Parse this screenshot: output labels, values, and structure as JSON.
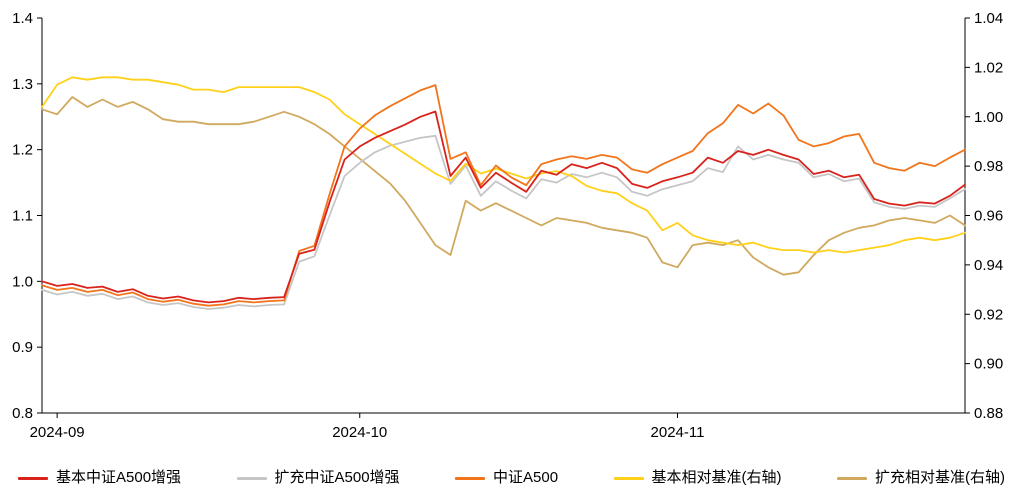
{
  "chart_data": {
    "type": "line",
    "title": "",
    "background": "#ffffff",
    "grid": false,
    "legend_position": "bottom",
    "x_tick_labels": [
      "2024-09",
      "2024-10",
      "2024-11"
    ],
    "x_tick_indices": [
      1,
      21,
      42
    ],
    "n_points": 62,
    "left_axis": {
      "min": 0.8,
      "max": 1.4,
      "tick_step": 0.1,
      "decimals": 1
    },
    "right_axis": {
      "min": 0.88,
      "max": 1.04,
      "tick_step": 0.02,
      "decimals": 2
    },
    "axis_color": "#000000",
    "series": [
      {
        "name": "基本中证A500增强",
        "axis": "left",
        "color": "#d9221c",
        "values": [
          1.0,
          0.993,
          0.996,
          0.99,
          0.992,
          0.984,
          0.988,
          0.978,
          0.974,
          0.977,
          0.971,
          0.968,
          0.97,
          0.975,
          0.973,
          0.975,
          0.976,
          1.042,
          1.048,
          1.12,
          1.185,
          1.205,
          1.218,
          1.228,
          1.238,
          1.25,
          1.258,
          1.16,
          1.188,
          1.142,
          1.165,
          1.15,
          1.136,
          1.168,
          1.162,
          1.178,
          1.172,
          1.18,
          1.172,
          1.148,
          1.142,
          1.152,
          1.158,
          1.165,
          1.188,
          1.18,
          1.198,
          1.192,
          1.2,
          1.192,
          1.185,
          1.163,
          1.168,
          1.158,
          1.162,
          1.125,
          1.118,
          1.115,
          1.12,
          1.118,
          1.13,
          1.147
        ]
      },
      {
        "name": "扩充中证A500增强",
        "axis": "left",
        "color": "#c6c6c6",
        "values": [
          0.987,
          0.98,
          0.984,
          0.978,
          0.981,
          0.973,
          0.977,
          0.968,
          0.964,
          0.967,
          0.961,
          0.958,
          0.96,
          0.964,
          0.962,
          0.964,
          0.965,
          1.03,
          1.038,
          1.1,
          1.16,
          1.18,
          1.196,
          1.206,
          1.212,
          1.218,
          1.221,
          1.148,
          1.176,
          1.13,
          1.152,
          1.138,
          1.126,
          1.155,
          1.15,
          1.163,
          1.158,
          1.165,
          1.158,
          1.136,
          1.13,
          1.14,
          1.146,
          1.152,
          1.172,
          1.166,
          1.205,
          1.185,
          1.192,
          1.185,
          1.18,
          1.158,
          1.163,
          1.152,
          1.156,
          1.12,
          1.113,
          1.11,
          1.115,
          1.113,
          1.126,
          1.14
        ]
      },
      {
        "name": "中证A500",
        "axis": "left",
        "color": "#f2741b",
        "values": [
          0.994,
          0.987,
          0.99,
          0.984,
          0.987,
          0.979,
          0.983,
          0.973,
          0.969,
          0.972,
          0.966,
          0.963,
          0.965,
          0.97,
          0.968,
          0.97,
          0.971,
          1.046,
          1.054,
          1.132,
          1.205,
          1.232,
          1.252,
          1.266,
          1.278,
          1.29,
          1.298,
          1.186,
          1.196,
          1.146,
          1.176,
          1.158,
          1.146,
          1.178,
          1.185,
          1.19,
          1.186,
          1.192,
          1.188,
          1.17,
          1.165,
          1.178,
          1.188,
          1.198,
          1.225,
          1.24,
          1.268,
          1.255,
          1.27,
          1.252,
          1.215,
          1.205,
          1.21,
          1.22,
          1.224,
          1.18,
          1.172,
          1.168,
          1.18,
          1.175,
          1.188,
          1.2
        ]
      },
      {
        "name": "基本相对基准(右轴)",
        "axis": "right",
        "color": "#ffd11a",
        "values": [
          1.004,
          1.013,
          1.016,
          1.015,
          1.016,
          1.016,
          1.015,
          1.015,
          1.014,
          1.013,
          1.011,
          1.011,
          1.01,
          1.012,
          1.012,
          1.012,
          1.012,
          1.012,
          1.01,
          1.007,
          1.001,
          0.997,
          0.993,
          0.989,
          0.985,
          0.981,
          0.977,
          0.974,
          0.981,
          0.977,
          0.979,
          0.977,
          0.975,
          0.977,
          0.978,
          0.976,
          0.972,
          0.97,
          0.969,
          0.965,
          0.962,
          0.954,
          0.957,
          0.952,
          0.95,
          0.949,
          0.948,
          0.949,
          0.947,
          0.946,
          0.946,
          0.945,
          0.946,
          0.945,
          0.946,
          0.947,
          0.948,
          0.95,
          0.951,
          0.95,
          0.951,
          0.953
        ]
      },
      {
        "name": "扩充相对基准(右轴)",
        "axis": "right",
        "color": "#d0a95e",
        "values": [
          1.003,
          1.001,
          1.008,
          1.004,
          1.007,
          1.004,
          1.006,
          1.003,
          0.999,
          0.998,
          0.998,
          0.997,
          0.997,
          0.997,
          0.998,
          1.0,
          1.002,
          1.0,
          0.997,
          0.993,
          0.988,
          0.983,
          0.978,
          0.973,
          0.966,
          0.957,
          0.948,
          0.944,
          0.966,
          0.962,
          0.965,
          0.962,
          0.959,
          0.956,
          0.959,
          0.958,
          0.957,
          0.955,
          0.954,
          0.953,
          0.951,
          0.941,
          0.939,
          0.948,
          0.949,
          0.948,
          0.95,
          0.943,
          0.939,
          0.936,
          0.937,
          0.944,
          0.95,
          0.953,
          0.955,
          0.956,
          0.958,
          0.959,
          0.958,
          0.957,
          0.96,
          0.956
        ]
      }
    ]
  }
}
